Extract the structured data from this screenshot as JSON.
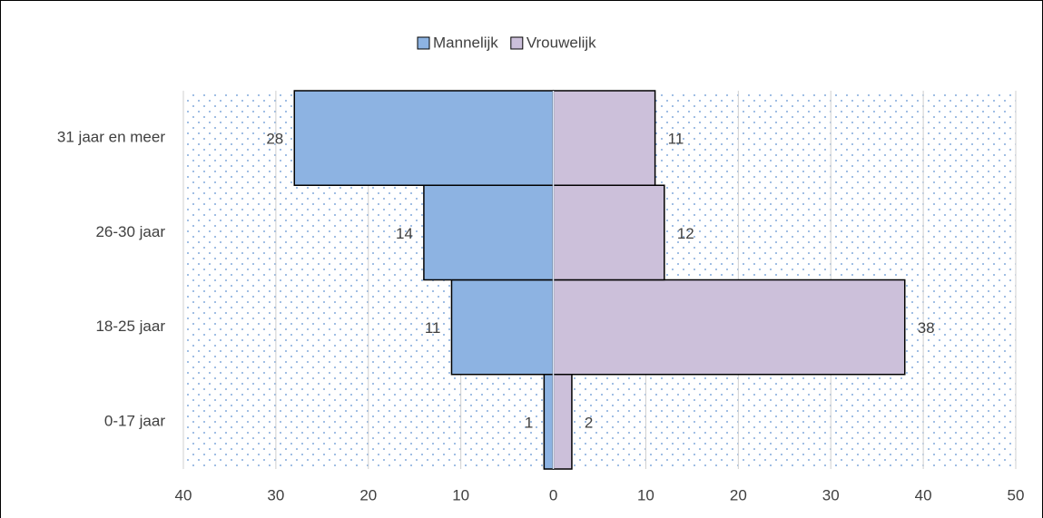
{
  "chart_data": {
    "type": "bar",
    "orientation": "horizontal",
    "stacked": true,
    "categories": [
      "0-17 jaar",
      "18-25 jaar",
      "26-30 jaar",
      "31 jaar en meer"
    ],
    "series": [
      {
        "name": "Mannelijk",
        "color": "#8db3e2",
        "values": [
          -1,
          -11,
          -14,
          -28
        ],
        "value_labels": [
          "1",
          "11",
          "14",
          "28"
        ]
      },
      {
        "name": "Vrouwelijk",
        "color": "#ccc0da",
        "values": [
          2,
          38,
          12,
          11
        ],
        "value_labels": [
          "2",
          "38",
          "12",
          "11"
        ]
      }
    ],
    "xlim": [
      -40,
      50
    ],
    "xticks": [
      {
        "value": -40,
        "label": "40"
      },
      {
        "value": -30,
        "label": "30"
      },
      {
        "value": -20,
        "label": "20"
      },
      {
        "value": -10,
        "label": "10"
      },
      0,
      10,
      20,
      30,
      40,
      50
    ],
    "grid": true,
    "legend": "top"
  }
}
